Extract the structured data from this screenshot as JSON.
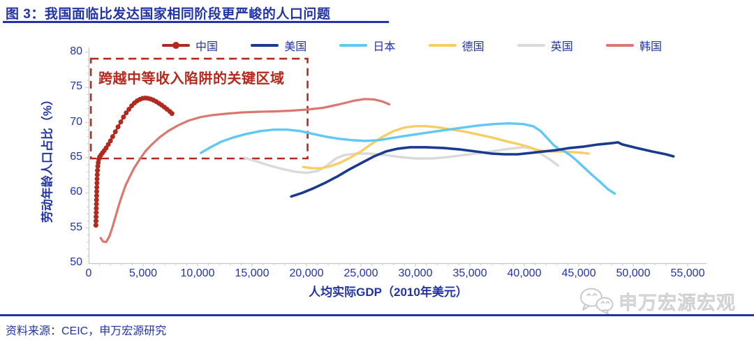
{
  "header": {
    "title": "图 3：我国面临比发达国家相同阶段更严峻的人口问题"
  },
  "source_note": "资料来源：CEIC，申万宏源研究",
  "watermark": {
    "label": "申万宏源宏观",
    "icon": "wechat-icon"
  },
  "colors": {
    "text_blue": "#2233A6",
    "annotation_red": "#B6271C",
    "axis_gray": "#c6c6c6"
  },
  "chart_data": {
    "type": "line",
    "title": "",
    "xlabel": "人均实际GDP（2010年美元）",
    "ylabel": "劳动年龄人口占比（%）",
    "xlim": [
      0,
      55000
    ],
    "ylim": [
      50,
      80
    ],
    "grid": false,
    "legend_position": "top",
    "x_ticks": [
      {
        "value": 0,
        "label": "0"
      },
      {
        "value": 5000,
        "label": "5,000"
      },
      {
        "value": 10000,
        "label": "10,000"
      },
      {
        "value": 15000,
        "label": "15,000"
      },
      {
        "value": 20000,
        "label": "20,000"
      },
      {
        "value": 25000,
        "label": "25,000"
      },
      {
        "value": 30000,
        "label": "30,000"
      },
      {
        "value": 35000,
        "label": "35,000"
      },
      {
        "value": 40000,
        "label": "40,000"
      },
      {
        "value": 45000,
        "label": "45,000"
      },
      {
        "value": 50000,
        "label": "50,000"
      },
      {
        "value": 55000,
        "label": "55,000"
      }
    ],
    "y_ticks": [
      {
        "value": 80,
        "label": "80"
      },
      {
        "value": 75,
        "label": "75"
      },
      {
        "value": 70,
        "label": "70"
      },
      {
        "value": 65,
        "label": "65"
      },
      {
        "value": 60,
        "label": "60"
      },
      {
        "value": 55,
        "label": "55"
      },
      {
        "value": 50,
        "label": "50"
      }
    ],
    "annotation": {
      "text": "跨越中等收入陷阱的关键区域",
      "box_gdp": [
        200,
        20100
      ],
      "box_pct": [
        64.9,
        79.1
      ]
    },
    "legend_order": [
      "china",
      "usa",
      "japan",
      "germany",
      "uk",
      "korea"
    ],
    "series": [
      {
        "id": "uk",
        "name": "英国",
        "color": "#D9D9D9",
        "line_width": 3.4,
        "marker": "none",
        "points": [
          [
            14300,
            65.0
          ],
          [
            15400,
            64.5
          ],
          [
            16600,
            63.9
          ],
          [
            17800,
            63.4
          ],
          [
            19000,
            63.0
          ],
          [
            20000,
            62.85
          ],
          [
            21000,
            63.1
          ],
          [
            21900,
            63.9
          ],
          [
            22700,
            64.9
          ],
          [
            23500,
            65.4
          ],
          [
            24500,
            65.6
          ],
          [
            25800,
            65.6
          ],
          [
            27200,
            65.4
          ],
          [
            28600,
            65.1
          ],
          [
            30000,
            64.9
          ],
          [
            31500,
            64.9
          ],
          [
            33000,
            65.1
          ],
          [
            34500,
            65.4
          ],
          [
            36000,
            65.7
          ],
          [
            37400,
            66.0
          ],
          [
            38700,
            66.3
          ],
          [
            40000,
            66.5
          ],
          [
            40800,
            66.3
          ],
          [
            41600,
            65.5
          ],
          [
            42400,
            64.7
          ],
          [
            43100,
            63.9
          ]
        ]
      },
      {
        "id": "germany",
        "name": "德国",
        "color": "#F7CE63",
        "line_width": 3.4,
        "marker": "none",
        "points": [
          [
            19700,
            63.7
          ],
          [
            20500,
            63.5
          ],
          [
            21300,
            63.5
          ],
          [
            22200,
            63.8
          ],
          [
            23100,
            64.3
          ],
          [
            24000,
            65.0
          ],
          [
            25000,
            65.9
          ],
          [
            26000,
            67.0
          ],
          [
            27000,
            68.0
          ],
          [
            28000,
            68.8
          ],
          [
            29000,
            69.3
          ],
          [
            30000,
            69.5
          ],
          [
            31000,
            69.5
          ],
          [
            32200,
            69.3
          ],
          [
            33400,
            69.0
          ],
          [
            34600,
            68.7
          ],
          [
            35800,
            68.3
          ],
          [
            37000,
            67.9
          ],
          [
            38200,
            67.4
          ],
          [
            39300,
            67.0
          ],
          [
            40300,
            66.6
          ],
          [
            41000,
            66.2
          ],
          [
            41600,
            66.0
          ],
          [
            42500,
            65.9
          ],
          [
            43500,
            65.9
          ],
          [
            44500,
            65.8
          ],
          [
            45400,
            65.7
          ],
          [
            45900,
            65.6
          ]
        ]
      },
      {
        "id": "japan",
        "name": "日本",
        "color": "#5FC9F4",
        "line_width": 3.4,
        "marker": "none",
        "points": [
          [
            10300,
            65.7
          ],
          [
            11200,
            66.5
          ],
          [
            12200,
            67.3
          ],
          [
            13300,
            67.9
          ],
          [
            14500,
            68.4
          ],
          [
            15800,
            68.8
          ],
          [
            17000,
            69.0
          ],
          [
            18200,
            69.0
          ],
          [
            19400,
            68.8
          ],
          [
            20600,
            68.4
          ],
          [
            21800,
            68.0
          ],
          [
            23000,
            67.7
          ],
          [
            24200,
            67.5
          ],
          [
            25400,
            67.4
          ],
          [
            26600,
            67.5
          ],
          [
            27800,
            67.8
          ],
          [
            29000,
            68.1
          ],
          [
            30300,
            68.4
          ],
          [
            31600,
            68.7
          ],
          [
            33000,
            69.0
          ],
          [
            34400,
            69.3
          ],
          [
            35800,
            69.6
          ],
          [
            37200,
            69.8
          ],
          [
            38600,
            69.9
          ],
          [
            39900,
            69.8
          ],
          [
            40800,
            69.5
          ],
          [
            41500,
            68.8
          ],
          [
            42100,
            67.8
          ],
          [
            42700,
            66.8
          ],
          [
            43200,
            66.2
          ],
          [
            43700,
            65.9
          ],
          [
            44200,
            65.4
          ],
          [
            44800,
            64.6
          ],
          [
            45500,
            63.6
          ],
          [
            46200,
            62.6
          ],
          [
            47000,
            61.5
          ],
          [
            47700,
            60.5
          ],
          [
            48300,
            59.9
          ]
        ]
      },
      {
        "id": "usa",
        "name": "美国",
        "color": "#1A3A90",
        "line_width": 3.6,
        "marker": "none",
        "points": [
          [
            18600,
            59.5
          ],
          [
            19600,
            60.0
          ],
          [
            20700,
            60.7
          ],
          [
            21800,
            61.5
          ],
          [
            22900,
            62.4
          ],
          [
            24000,
            63.4
          ],
          [
            25100,
            64.3
          ],
          [
            26200,
            65.2
          ],
          [
            27300,
            65.9
          ],
          [
            28400,
            66.3
          ],
          [
            29500,
            66.5
          ],
          [
            31000,
            66.5
          ],
          [
            32500,
            66.4
          ],
          [
            34000,
            66.2
          ],
          [
            35500,
            65.9
          ],
          [
            37000,
            65.6
          ],
          [
            38200,
            65.5
          ],
          [
            39400,
            65.5
          ],
          [
            40600,
            65.7
          ],
          [
            41800,
            65.9
          ],
          [
            43000,
            66.1
          ],
          [
            44200,
            66.4
          ],
          [
            45500,
            66.6
          ],
          [
            46800,
            66.9
          ],
          [
            48100,
            67.1
          ],
          [
            48600,
            67.2
          ],
          [
            49000,
            66.9
          ],
          [
            50300,
            66.4
          ],
          [
            51700,
            65.9
          ],
          [
            53000,
            65.5
          ],
          [
            53700,
            65.2
          ]
        ]
      },
      {
        "id": "korea",
        "name": "韩国",
        "color": "#DA7770",
        "line_width": 3.2,
        "marker": "none",
        "points": [
          [
            1100,
            53.6
          ],
          [
            1300,
            53.1
          ],
          [
            1600,
            53.0
          ],
          [
            1900,
            53.8
          ],
          [
            2200,
            55.2
          ],
          [
            2500,
            56.8
          ],
          [
            2800,
            58.4
          ],
          [
            3100,
            59.8
          ],
          [
            3400,
            61.1
          ],
          [
            3800,
            62.4
          ],
          [
            4200,
            63.6
          ],
          [
            4700,
            64.8
          ],
          [
            5200,
            65.9
          ],
          [
            5800,
            66.9
          ],
          [
            6500,
            67.9
          ],
          [
            7300,
            68.8
          ],
          [
            8200,
            69.6
          ],
          [
            9200,
            70.3
          ],
          [
            10300,
            70.8
          ],
          [
            11500,
            71.1
          ],
          [
            12800,
            71.3
          ],
          [
            14000,
            71.45
          ],
          [
            15500,
            71.55
          ],
          [
            17000,
            71.6
          ],
          [
            18500,
            71.7
          ],
          [
            20000,
            71.85
          ],
          [
            21500,
            72.1
          ],
          [
            23000,
            72.6
          ],
          [
            24300,
            73.1
          ],
          [
            25300,
            73.35
          ],
          [
            26200,
            73.3
          ],
          [
            27000,
            73.0
          ],
          [
            27600,
            72.6
          ]
        ]
      },
      {
        "id": "china",
        "name": "中国",
        "color": "#B02A1F",
        "line_width": 2.8,
        "marker": "circle",
        "points": [
          [
            660,
            55.4
          ],
          [
            670,
            56.0
          ],
          [
            680,
            56.6
          ],
          [
            690,
            57.2
          ],
          [
            700,
            57.8
          ],
          [
            710,
            58.4
          ],
          [
            720,
            59.0
          ],
          [
            730,
            59.6
          ],
          [
            740,
            60.2
          ],
          [
            750,
            60.8
          ],
          [
            760,
            61.4
          ],
          [
            770,
            62.0
          ],
          [
            790,
            62.6
          ],
          [
            810,
            63.2
          ],
          [
            840,
            63.8
          ],
          [
            880,
            64.3
          ],
          [
            930,
            64.8
          ],
          [
            1000,
            65.1
          ],
          [
            1120,
            65.4
          ],
          [
            1260,
            65.7
          ],
          [
            1420,
            66.0
          ],
          [
            1600,
            66.4
          ],
          [
            1800,
            66.9
          ],
          [
            2000,
            67.4
          ],
          [
            2200,
            68.0
          ],
          [
            2450,
            68.7
          ],
          [
            2700,
            69.4
          ],
          [
            2950,
            70.1
          ],
          [
            3200,
            70.8
          ],
          [
            3450,
            71.4
          ],
          [
            3700,
            71.9
          ],
          [
            3950,
            72.4
          ],
          [
            4200,
            72.8
          ],
          [
            4450,
            73.1
          ],
          [
            4700,
            73.3
          ],
          [
            4950,
            73.45
          ],
          [
            5200,
            73.5
          ],
          [
            5450,
            73.45
          ],
          [
            5700,
            73.35
          ],
          [
            5950,
            73.2
          ],
          [
            6200,
            73.0
          ],
          [
            6450,
            72.75
          ],
          [
            6700,
            72.5
          ],
          [
            6950,
            72.2
          ],
          [
            7200,
            71.9
          ],
          [
            7450,
            71.6
          ],
          [
            7650,
            71.3
          ]
        ]
      }
    ]
  }
}
